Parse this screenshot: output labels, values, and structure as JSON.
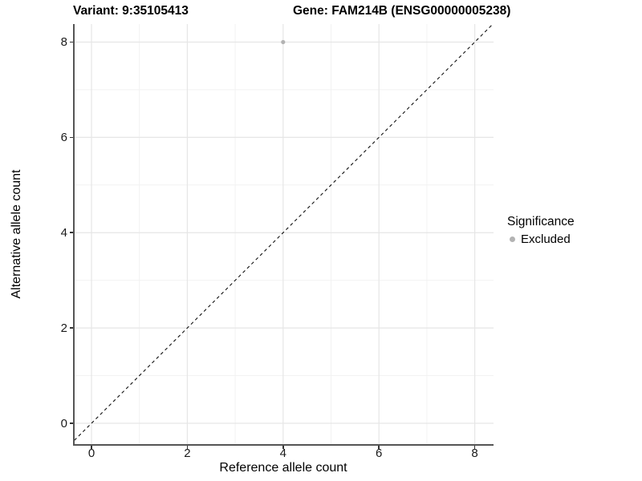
{
  "header": {
    "variant_title": "Variant: 9:35105413",
    "gene_title": "Gene: FAM214B (ENSG00000005238)"
  },
  "axes": {
    "x": {
      "label": "Reference allele count",
      "tick_labels": [
        "0",
        "2",
        "4",
        "6",
        "8"
      ],
      "tick_values": [
        0,
        2,
        4,
        6,
        8
      ],
      "minor_values": [
        1,
        3,
        5,
        7
      ]
    },
    "y": {
      "label": "Alternative allele count",
      "tick_labels": [
        "0",
        "2",
        "4",
        "6",
        "8"
      ],
      "tick_values": [
        0,
        2,
        4,
        6,
        8
      ],
      "minor_values": [
        1,
        3,
        5,
        7
      ]
    }
  },
  "legend": {
    "title": "Significance",
    "items": [
      {
        "label": "Excluded",
        "color": "#b3b3b3"
      }
    ]
  },
  "colors": {
    "grid_major": "#e6e6e6",
    "grid_minor": "#f2f2f2",
    "axis_line": "#555555",
    "tick_text": "#1a1a1a",
    "reference_line": "#111111",
    "point": "#b3b3b3"
  },
  "chart_data": {
    "type": "scatter",
    "title": "Variant: 9:35105413 | Gene: FAM214B (ENSG00000005238)",
    "xlabel": "Reference allele count",
    "ylabel": "Alternative allele count",
    "xlim": [
      -0.4,
      8.4
    ],
    "ylim": [
      -0.45,
      8.4
    ],
    "grid": "major+minor",
    "legend_position": "right",
    "series": [
      {
        "name": "Excluded",
        "color": "#b3b3b3",
        "points": [
          {
            "x": 4,
            "y": 8
          }
        ]
      }
    ],
    "reference_line": {
      "equation": "y = x",
      "style": "dashed",
      "color": "#111111",
      "from": {
        "x": -0.45,
        "y": -0.45
      },
      "to": {
        "x": 8.45,
        "y": 8.45
      }
    }
  }
}
